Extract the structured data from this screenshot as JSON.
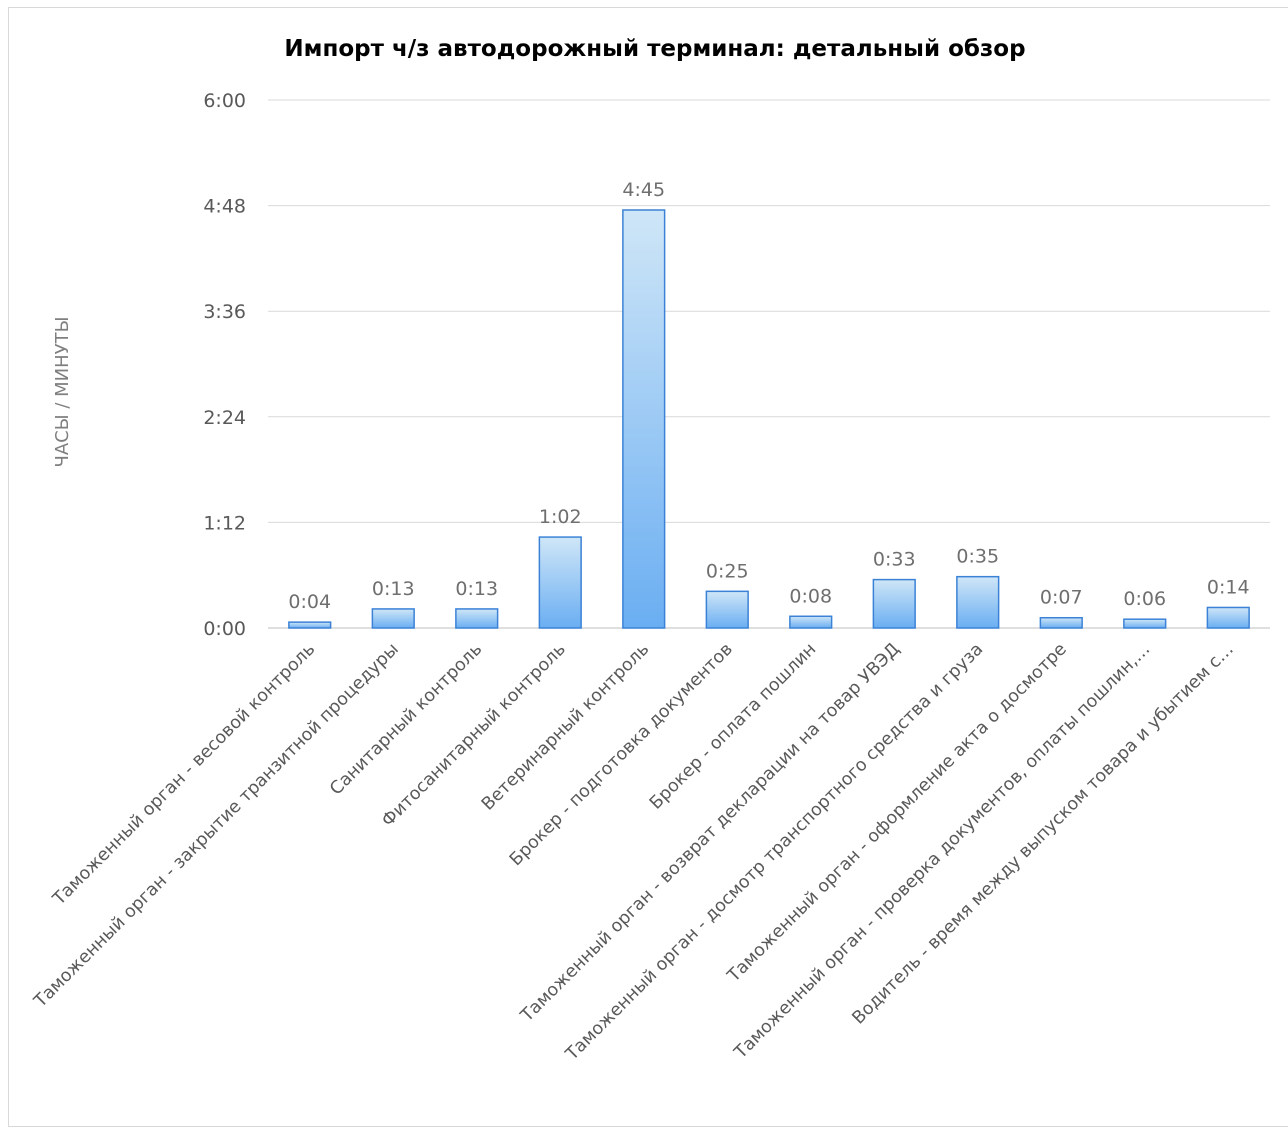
{
  "chart_data": {
    "type": "bar",
    "title": "Импорт ч/з автодорожный терминал: детальный обзор",
    "ylabel": "ЧАСЫ / МИНУТЫ",
    "xlabel": "",
    "ylim_minutes": [
      0,
      360
    ],
    "y_ticks": [
      {
        "label": "0:00",
        "minutes": 0
      },
      {
        "label": "1:12",
        "minutes": 72
      },
      {
        "label": "2:24",
        "minutes": 144
      },
      {
        "label": "3:36",
        "minutes": 216
      },
      {
        "label": "4:48",
        "minutes": 288
      },
      {
        "label": "6:00",
        "minutes": 360
      }
    ],
    "grid": true,
    "legend": "none",
    "bar_color_top": "#cfe6f7",
    "bar_color_bottom": "#6aaef2",
    "bar_border": "#3b82d6",
    "categories": [
      "Таможенный орган - весовой контроль",
      "Таможенный орган - закрытие транзитной процедуры",
      "Санитарный контроль",
      "Фитосанитарный контроль",
      "Ветеринарный контроль",
      "Брокер - подготовка документов",
      "Брокер - оплата пошлин",
      "Таможенный орган - возврат декларации на товар УВЭД",
      "Таможенный орган - досмотр транспортного средства и груза",
      "Таможенный орган - оформление акта о досмотре",
      "Таможенный орган - проверка документов, оплаты пошлин,…",
      "Водитель - время между выпуском товара и убытием с…"
    ],
    "values_minutes": [
      4,
      13,
      13,
      62,
      285,
      25,
      8,
      33,
      35,
      7,
      6,
      14
    ],
    "data_labels": [
      "0:04",
      "0:13",
      "0:13",
      "1:02",
      "4:45",
      "0:25",
      "0:08",
      "0:33",
      "0:35",
      "0:07",
      "0:06",
      "0:14"
    ]
  }
}
